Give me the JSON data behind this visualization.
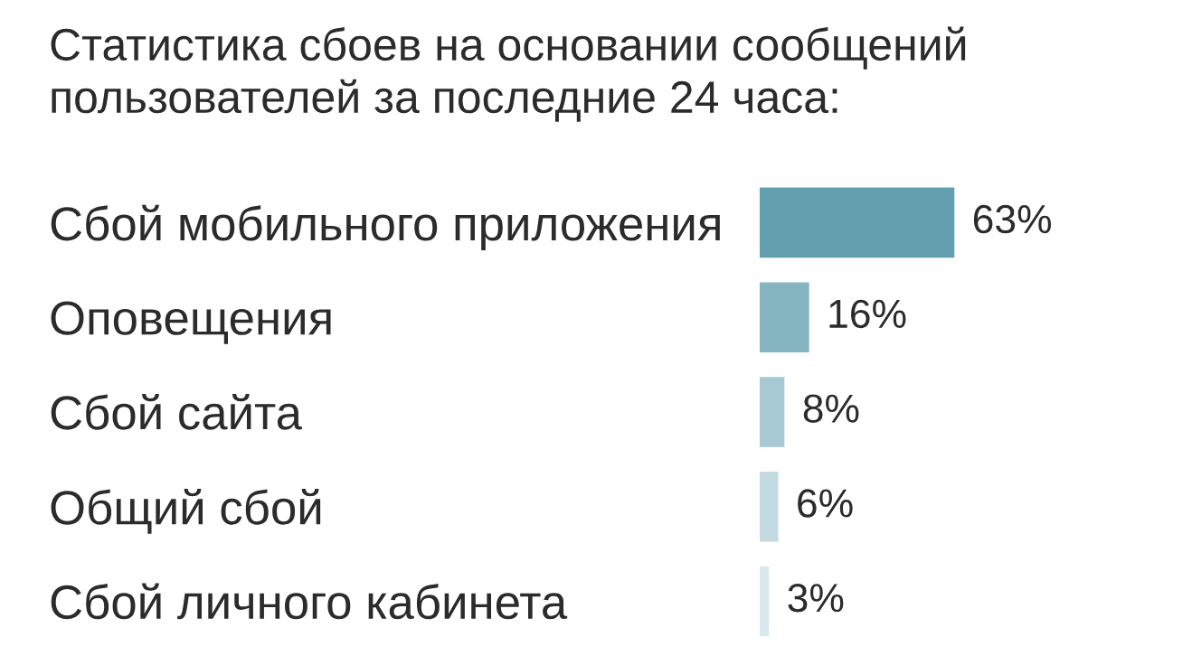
{
  "chart_data": {
    "type": "bar",
    "orientation": "horizontal",
    "title": "Статистика сбоев на основании сообщений\nпользователей за последние 24 часа:",
    "categories": [
      "Сбой мобильного приложения",
      "Оповещения",
      "Сбой сайта",
      "Общий сбой",
      "Сбой личного кабинета"
    ],
    "values": [
      63,
      16,
      8,
      6,
      3
    ],
    "colors": [
      "#62a0b0",
      "#86b5c2",
      "#a6c9d3",
      "#c3dae1",
      "#dae9ed"
    ],
    "value_labels": [
      "63%",
      "16%",
      "8%",
      "6%",
      "3%"
    ],
    "tick_labels": "y",
    "grid": false,
    "legend": false
  }
}
